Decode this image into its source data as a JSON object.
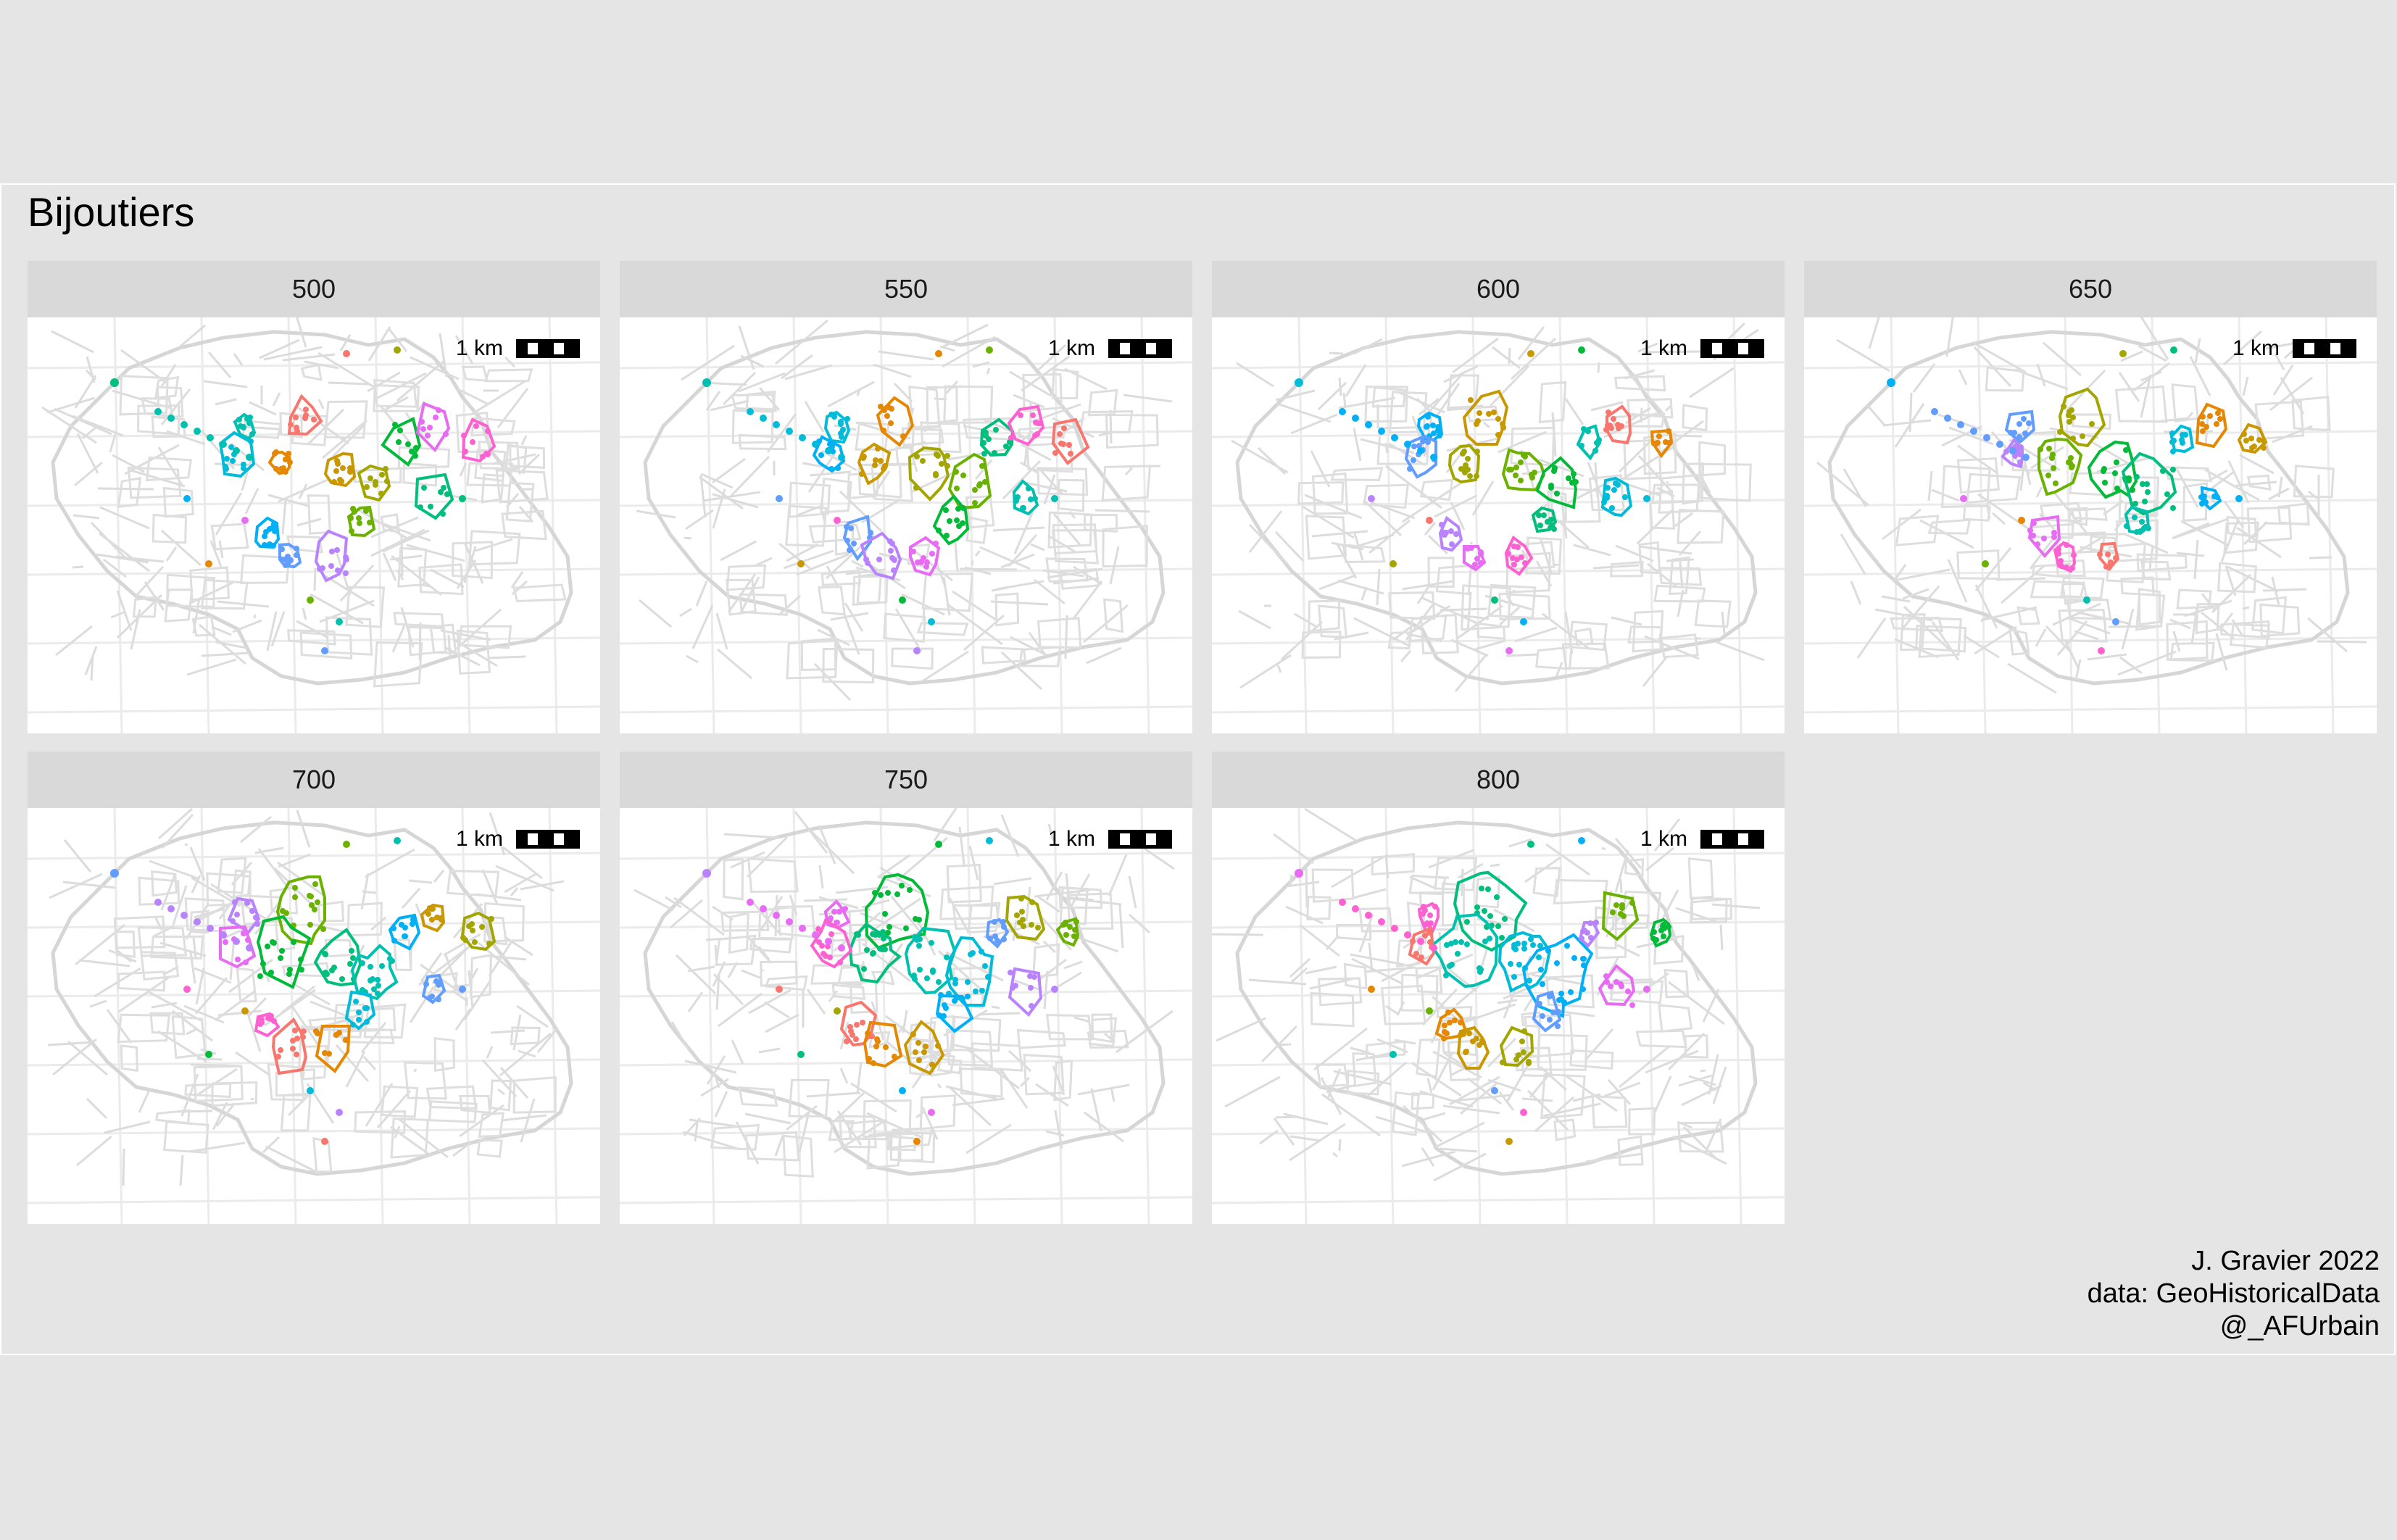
{
  "title": "Bijoutiers",
  "scale_label": "1 km",
  "panels": [
    {
      "label": "500"
    },
    {
      "label": "550"
    },
    {
      "label": "600"
    },
    {
      "label": "650"
    },
    {
      "label": "700"
    },
    {
      "label": "750"
    },
    {
      "label": "800"
    }
  ],
  "caption": {
    "line1": "J. Gravier 2022",
    "line2": "data: GeoHistoricalData",
    "line3": "@_AFUrbain"
  },
  "colors": {
    "background": "#e5e5e5",
    "panel": "#ffffff",
    "strip": "#d9d9d9",
    "streets": "#d9d9d9",
    "clusters": [
      "#f8766d",
      "#e58700",
      "#c99800",
      "#a3a500",
      "#6bb100",
      "#00ba38",
      "#00bf7d",
      "#00c0af",
      "#00bcd8",
      "#00b0f6",
      "#619cff",
      "#b983ff",
      "#e76bf3",
      "#fd61d1"
    ]
  }
}
